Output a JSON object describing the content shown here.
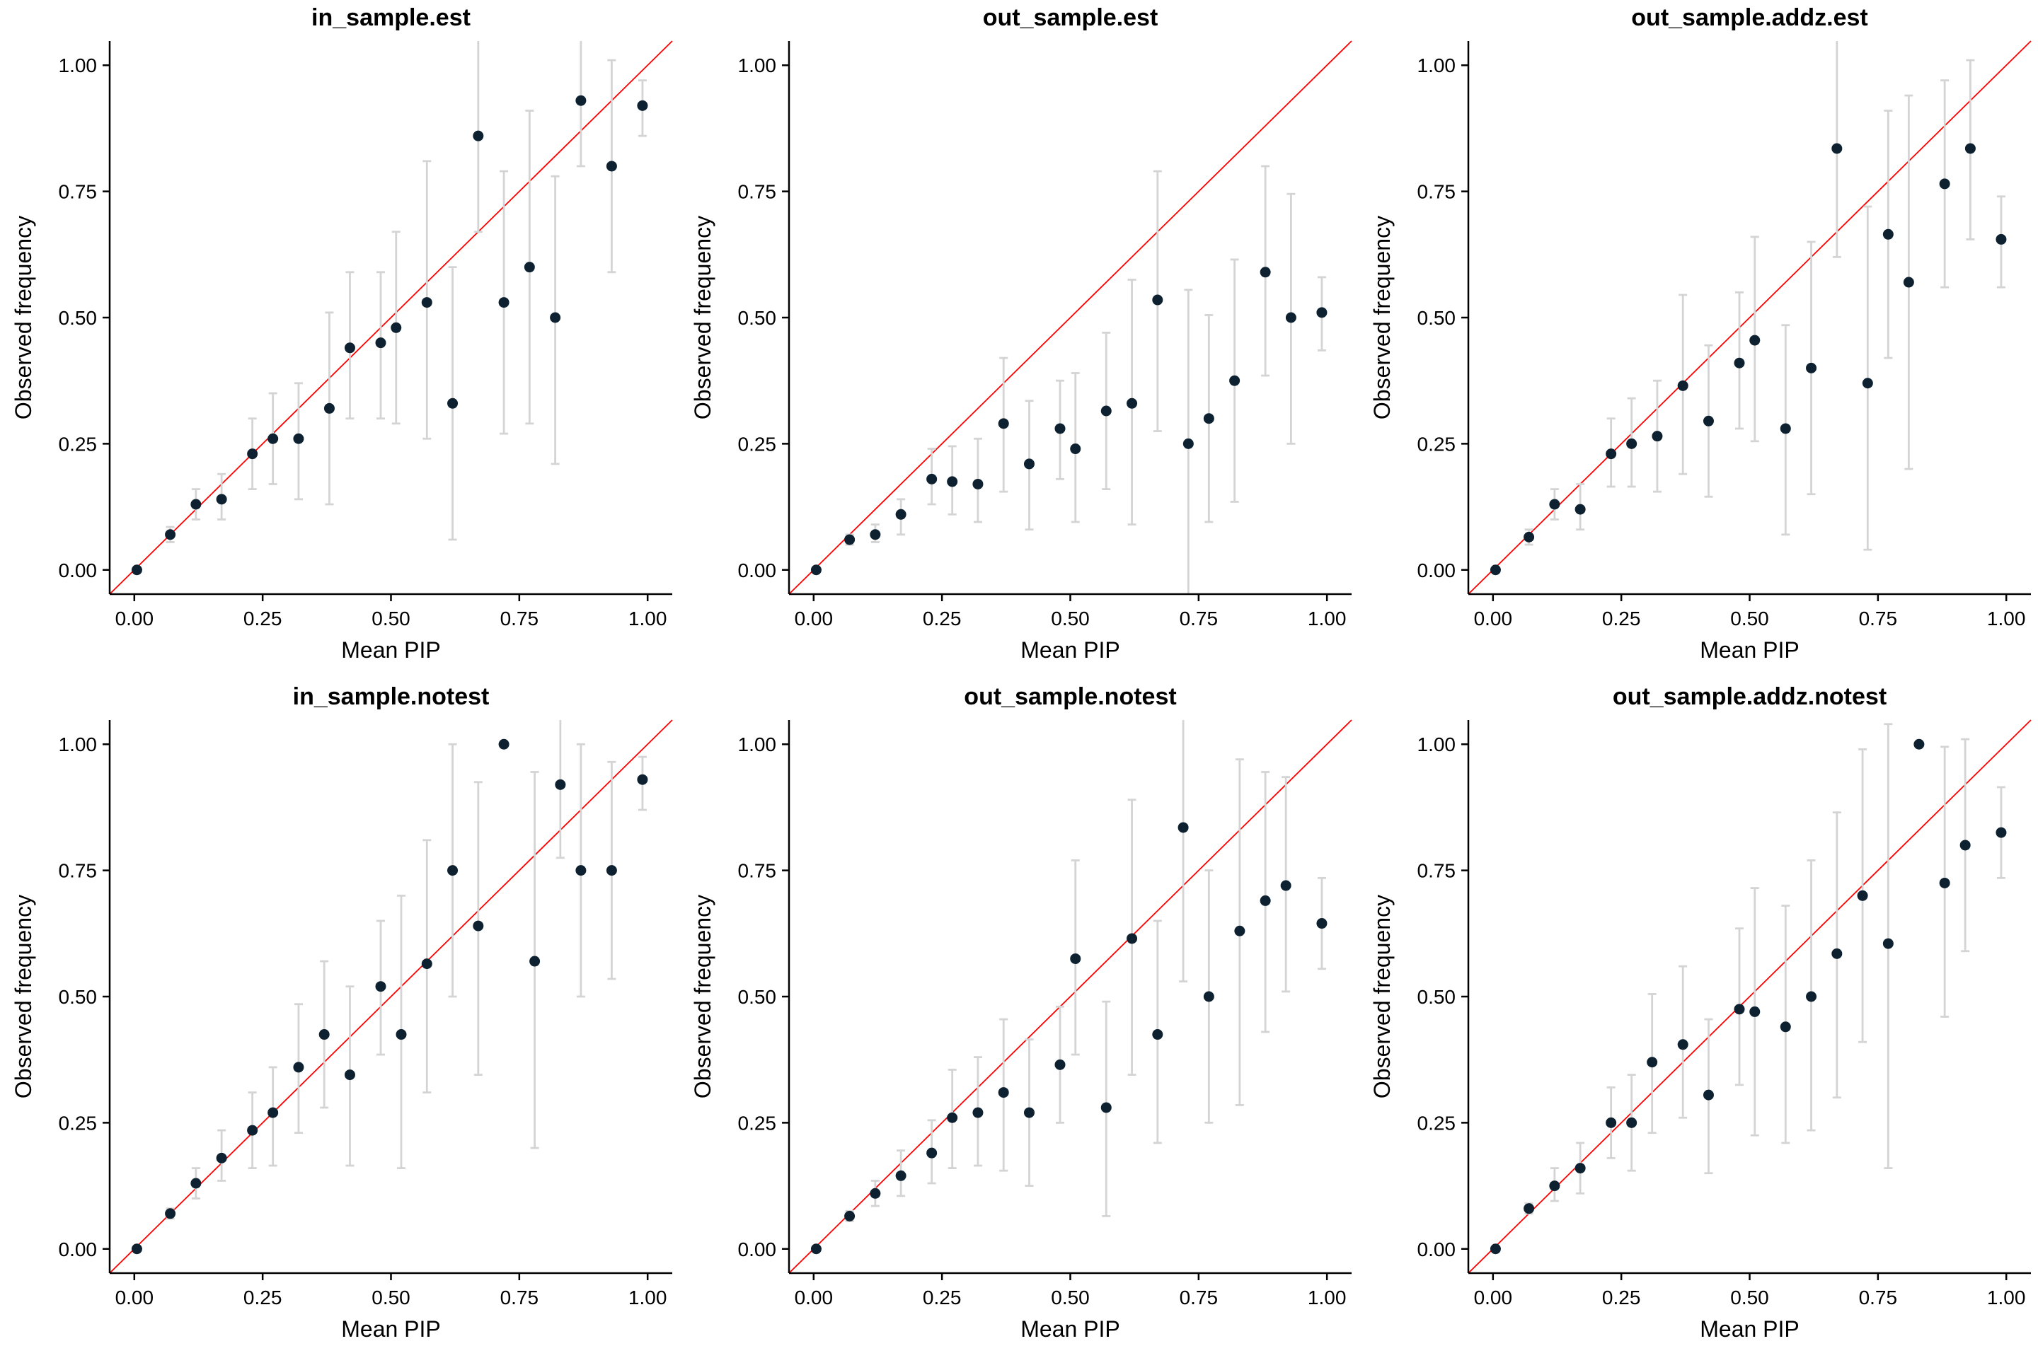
{
  "figure": {
    "background": "#ffffff",
    "xlabel": "Mean PIP",
    "ylabel": "Observed frequency"
  },
  "style": {
    "point_color": "#0e2130",
    "errorbar_color": "#d4d4d4",
    "identity_line_color": "#ff0000",
    "axis_color": "#000000",
    "text_color": "#000000"
  },
  "chart_data": [
    {
      "type": "scatter",
      "title": "in_sample.est",
      "xlabel": "Mean PIP",
      "ylabel": "Observed frequency",
      "xlim": [
        -0.048,
        1.048
      ],
      "ylim": [
        -0.048,
        1.048
      ],
      "grid": false,
      "legend": "none",
      "identity_line": true,
      "x_ticks": {
        "values": [
          0,
          0.25,
          0.5,
          0.75,
          1
        ],
        "labels": [
          "0.00",
          "0.25",
          "0.50",
          "0.75",
          "1.00"
        ]
      },
      "y_ticks": {
        "values": [
          0,
          0.25,
          0.5,
          0.75,
          1
        ],
        "labels": [
          "0.00",
          "0.25",
          "0.50",
          "0.75",
          "1.00"
        ]
      },
      "points": [
        {
          "x": 0.005,
          "y": 0.0,
          "lo": 0.0,
          "hi": 0.0
        },
        {
          "x": 0.07,
          "y": 0.07,
          "lo": 0.055,
          "hi": 0.085
        },
        {
          "x": 0.12,
          "y": 0.13,
          "lo": 0.1,
          "hi": 0.16
        },
        {
          "x": 0.17,
          "y": 0.14,
          "lo": 0.1,
          "hi": 0.19
        },
        {
          "x": 0.23,
          "y": 0.23,
          "lo": 0.16,
          "hi": 0.3
        },
        {
          "x": 0.27,
          "y": 0.26,
          "lo": 0.17,
          "hi": 0.35
        },
        {
          "x": 0.32,
          "y": 0.26,
          "lo": 0.14,
          "hi": 0.37
        },
        {
          "x": 0.38,
          "y": 0.32,
          "lo": 0.13,
          "hi": 0.51
        },
        {
          "x": 0.42,
          "y": 0.44,
          "lo": 0.3,
          "hi": 0.59
        },
        {
          "x": 0.48,
          "y": 0.45,
          "lo": 0.3,
          "hi": 0.59
        },
        {
          "x": 0.51,
          "y": 0.48,
          "lo": 0.29,
          "hi": 0.67
        },
        {
          "x": 0.57,
          "y": 0.53,
          "lo": 0.26,
          "hi": 0.81
        },
        {
          "x": 0.62,
          "y": 0.33,
          "lo": 0.06,
          "hi": 0.6
        },
        {
          "x": 0.67,
          "y": 0.86,
          "lo": 0.67,
          "hi": 1.05
        },
        {
          "x": 0.72,
          "y": 0.53,
          "lo": 0.27,
          "hi": 0.79
        },
        {
          "x": 0.77,
          "y": 0.6,
          "lo": 0.29,
          "hi": 0.91
        },
        {
          "x": 0.82,
          "y": 0.5,
          "lo": 0.21,
          "hi": 0.78
        },
        {
          "x": 0.87,
          "y": 0.93,
          "lo": 0.8,
          "hi": 1.05
        },
        {
          "x": 0.93,
          "y": 0.8,
          "lo": 0.59,
          "hi": 1.01
        },
        {
          "x": 0.99,
          "y": 0.92,
          "lo": 0.86,
          "hi": 0.97
        }
      ]
    },
    {
      "type": "scatter",
      "title": "out_sample.est",
      "xlabel": "Mean PIP",
      "ylabel": "Observed frequency",
      "xlim": [
        -0.048,
        1.048
      ],
      "ylim": [
        -0.048,
        1.048
      ],
      "grid": false,
      "legend": "none",
      "identity_line": true,
      "x_ticks": {
        "values": [
          0,
          0.25,
          0.5,
          0.75,
          1
        ],
        "labels": [
          "0.00",
          "0.25",
          "0.50",
          "0.75",
          "1.00"
        ]
      },
      "y_ticks": {
        "values": [
          0,
          0.25,
          0.5,
          0.75,
          1
        ],
        "labels": [
          "0.00",
          "0.25",
          "0.50",
          "0.75",
          "1.00"
        ]
      },
      "points": [
        {
          "x": 0.005,
          "y": 0.0,
          "lo": 0.0,
          "hi": 0.0
        },
        {
          "x": 0.07,
          "y": 0.06,
          "lo": 0.05,
          "hi": 0.07
        },
        {
          "x": 0.12,
          "y": 0.07,
          "lo": 0.055,
          "hi": 0.09
        },
        {
          "x": 0.17,
          "y": 0.11,
          "lo": 0.07,
          "hi": 0.14
        },
        {
          "x": 0.23,
          "y": 0.18,
          "lo": 0.13,
          "hi": 0.24
        },
        {
          "x": 0.27,
          "y": 0.175,
          "lo": 0.11,
          "hi": 0.245
        },
        {
          "x": 0.32,
          "y": 0.17,
          "lo": 0.095,
          "hi": 0.26
        },
        {
          "x": 0.37,
          "y": 0.29,
          "lo": 0.155,
          "hi": 0.42
        },
        {
          "x": 0.42,
          "y": 0.21,
          "lo": 0.08,
          "hi": 0.335
        },
        {
          "x": 0.48,
          "y": 0.28,
          "lo": 0.18,
          "hi": 0.375
        },
        {
          "x": 0.51,
          "y": 0.24,
          "lo": 0.095,
          "hi": 0.39
        },
        {
          "x": 0.57,
          "y": 0.315,
          "lo": 0.16,
          "hi": 0.47
        },
        {
          "x": 0.62,
          "y": 0.33,
          "lo": 0.09,
          "hi": 0.575
        },
        {
          "x": 0.67,
          "y": 0.535,
          "lo": 0.275,
          "hi": 0.79
        },
        {
          "x": 0.73,
          "y": 0.25,
          "lo": -0.05,
          "hi": 0.555
        },
        {
          "x": 0.77,
          "y": 0.3,
          "lo": 0.095,
          "hi": 0.505
        },
        {
          "x": 0.82,
          "y": 0.375,
          "lo": 0.135,
          "hi": 0.615
        },
        {
          "x": 0.88,
          "y": 0.59,
          "lo": 0.385,
          "hi": 0.8
        },
        {
          "x": 0.93,
          "y": 0.5,
          "lo": 0.25,
          "hi": 0.745
        },
        {
          "x": 0.99,
          "y": 0.51,
          "lo": 0.435,
          "hi": 0.58
        }
      ]
    },
    {
      "type": "scatter",
      "title": "out_sample.addz.est",
      "xlabel": "Mean PIP",
      "ylabel": "Observed frequency",
      "xlim": [
        -0.048,
        1.048
      ],
      "ylim": [
        -0.048,
        1.048
      ],
      "grid": false,
      "legend": "none",
      "identity_line": true,
      "x_ticks": {
        "values": [
          0,
          0.25,
          0.5,
          0.75,
          1
        ],
        "labels": [
          "0.00",
          "0.25",
          "0.50",
          "0.75",
          "1.00"
        ]
      },
      "y_ticks": {
        "values": [
          0,
          0.25,
          0.5,
          0.75,
          1
        ],
        "labels": [
          "0.00",
          "0.25",
          "0.50",
          "0.75",
          "1.00"
        ]
      },
      "points": [
        {
          "x": 0.005,
          "y": 0.0,
          "lo": 0.0,
          "hi": 0.0
        },
        {
          "x": 0.07,
          "y": 0.065,
          "lo": 0.05,
          "hi": 0.08
        },
        {
          "x": 0.12,
          "y": 0.13,
          "lo": 0.1,
          "hi": 0.16
        },
        {
          "x": 0.17,
          "y": 0.12,
          "lo": 0.08,
          "hi": 0.17
        },
        {
          "x": 0.23,
          "y": 0.23,
          "lo": 0.165,
          "hi": 0.3
        },
        {
          "x": 0.27,
          "y": 0.25,
          "lo": 0.165,
          "hi": 0.34
        },
        {
          "x": 0.32,
          "y": 0.265,
          "lo": 0.155,
          "hi": 0.375
        },
        {
          "x": 0.37,
          "y": 0.365,
          "lo": 0.19,
          "hi": 0.545
        },
        {
          "x": 0.42,
          "y": 0.295,
          "lo": 0.145,
          "hi": 0.445
        },
        {
          "x": 0.48,
          "y": 0.41,
          "lo": 0.28,
          "hi": 0.55
        },
        {
          "x": 0.51,
          "y": 0.455,
          "lo": 0.255,
          "hi": 0.66
        },
        {
          "x": 0.57,
          "y": 0.28,
          "lo": 0.07,
          "hi": 0.485
        },
        {
          "x": 0.62,
          "y": 0.4,
          "lo": 0.15,
          "hi": 0.65
        },
        {
          "x": 0.67,
          "y": 0.835,
          "lo": 0.62,
          "hi": 1.05
        },
        {
          "x": 0.73,
          "y": 0.37,
          "lo": 0.04,
          "hi": 0.72
        },
        {
          "x": 0.77,
          "y": 0.665,
          "lo": 0.42,
          "hi": 0.91
        },
        {
          "x": 0.81,
          "y": 0.57,
          "lo": 0.2,
          "hi": 0.94
        },
        {
          "x": 0.88,
          "y": 0.765,
          "lo": 0.56,
          "hi": 0.97
        },
        {
          "x": 0.93,
          "y": 0.835,
          "lo": 0.655,
          "hi": 1.01
        },
        {
          "x": 0.99,
          "y": 0.655,
          "lo": 0.56,
          "hi": 0.74
        }
      ]
    },
    {
      "type": "scatter",
      "title": "in_sample.notest",
      "xlabel": "Mean PIP",
      "ylabel": "Observed frequency",
      "xlim": [
        -0.048,
        1.048
      ],
      "ylim": [
        -0.048,
        1.048
      ],
      "grid": false,
      "legend": "none",
      "identity_line": true,
      "x_ticks": {
        "values": [
          0,
          0.25,
          0.5,
          0.75,
          1
        ],
        "labels": [
          "0.00",
          "0.25",
          "0.50",
          "0.75",
          "1.00"
        ]
      },
      "y_ticks": {
        "values": [
          0,
          0.25,
          0.5,
          0.75,
          1
        ],
        "labels": [
          "0.00",
          "0.25",
          "0.50",
          "0.75",
          "1.00"
        ]
      },
      "points": [
        {
          "x": 0.005,
          "y": 0.0,
          "lo": 0.0,
          "hi": 0.0
        },
        {
          "x": 0.07,
          "y": 0.07,
          "lo": 0.06,
          "hi": 0.08
        },
        {
          "x": 0.12,
          "y": 0.13,
          "lo": 0.1,
          "hi": 0.16
        },
        {
          "x": 0.17,
          "y": 0.18,
          "lo": 0.135,
          "hi": 0.235
        },
        {
          "x": 0.23,
          "y": 0.235,
          "lo": 0.16,
          "hi": 0.31
        },
        {
          "x": 0.27,
          "y": 0.27,
          "lo": 0.165,
          "hi": 0.36
        },
        {
          "x": 0.32,
          "y": 0.36,
          "lo": 0.23,
          "hi": 0.485
        },
        {
          "x": 0.37,
          "y": 0.425,
          "lo": 0.28,
          "hi": 0.57
        },
        {
          "x": 0.42,
          "y": 0.345,
          "lo": 0.165,
          "hi": 0.52
        },
        {
          "x": 0.48,
          "y": 0.52,
          "lo": 0.385,
          "hi": 0.65
        },
        {
          "x": 0.52,
          "y": 0.425,
          "lo": 0.16,
          "hi": 0.7
        },
        {
          "x": 0.57,
          "y": 0.565,
          "lo": 0.31,
          "hi": 0.81
        },
        {
          "x": 0.62,
          "y": 0.75,
          "lo": 0.5,
          "hi": 1.0
        },
        {
          "x": 0.67,
          "y": 0.64,
          "lo": 0.345,
          "hi": 0.925
        },
        {
          "x": 0.72,
          "y": 1.0,
          "lo": 1.0,
          "hi": 1.0
        },
        {
          "x": 0.78,
          "y": 0.57,
          "lo": 0.2,
          "hi": 0.945
        },
        {
          "x": 0.83,
          "y": 0.92,
          "lo": 0.775,
          "hi": 1.05
        },
        {
          "x": 0.87,
          "y": 0.75,
          "lo": 0.5,
          "hi": 1.0
        },
        {
          "x": 0.93,
          "y": 0.75,
          "lo": 0.535,
          "hi": 0.965
        },
        {
          "x": 0.99,
          "y": 0.93,
          "lo": 0.87,
          "hi": 0.975
        }
      ]
    },
    {
      "type": "scatter",
      "title": "out_sample.notest",
      "xlabel": "Mean PIP",
      "ylabel": "Observed frequency",
      "xlim": [
        -0.048,
        1.048
      ],
      "ylim": [
        -0.048,
        1.048
      ],
      "grid": false,
      "legend": "none",
      "identity_line": true,
      "x_ticks": {
        "values": [
          0,
          0.25,
          0.5,
          0.75,
          1
        ],
        "labels": [
          "0.00",
          "0.25",
          "0.50",
          "0.75",
          "1.00"
        ]
      },
      "y_ticks": {
        "values": [
          0,
          0.25,
          0.5,
          0.75,
          1
        ],
        "labels": [
          "0.00",
          "0.25",
          "0.50",
          "0.75",
          "1.00"
        ]
      },
      "points": [
        {
          "x": 0.005,
          "y": 0.0,
          "lo": 0.0,
          "hi": 0.0
        },
        {
          "x": 0.07,
          "y": 0.065,
          "lo": 0.055,
          "hi": 0.075
        },
        {
          "x": 0.12,
          "y": 0.11,
          "lo": 0.085,
          "hi": 0.135
        },
        {
          "x": 0.17,
          "y": 0.145,
          "lo": 0.105,
          "hi": 0.195
        },
        {
          "x": 0.23,
          "y": 0.19,
          "lo": 0.13,
          "hi": 0.255
        },
        {
          "x": 0.27,
          "y": 0.26,
          "lo": 0.16,
          "hi": 0.355
        },
        {
          "x": 0.32,
          "y": 0.27,
          "lo": 0.165,
          "hi": 0.38
        },
        {
          "x": 0.37,
          "y": 0.31,
          "lo": 0.155,
          "hi": 0.455
        },
        {
          "x": 0.42,
          "y": 0.27,
          "lo": 0.125,
          "hi": 0.415
        },
        {
          "x": 0.48,
          "y": 0.365,
          "lo": 0.25,
          "hi": 0.48
        },
        {
          "x": 0.51,
          "y": 0.575,
          "lo": 0.385,
          "hi": 0.77
        },
        {
          "x": 0.57,
          "y": 0.28,
          "lo": 0.065,
          "hi": 0.49
        },
        {
          "x": 0.62,
          "y": 0.615,
          "lo": 0.345,
          "hi": 0.89
        },
        {
          "x": 0.67,
          "y": 0.425,
          "lo": 0.21,
          "hi": 0.65
        },
        {
          "x": 0.72,
          "y": 0.835,
          "lo": 0.53,
          "hi": 1.05
        },
        {
          "x": 0.77,
          "y": 0.5,
          "lo": 0.25,
          "hi": 0.75
        },
        {
          "x": 0.83,
          "y": 0.63,
          "lo": 0.285,
          "hi": 0.97
        },
        {
          "x": 0.88,
          "y": 0.69,
          "lo": 0.43,
          "hi": 0.945
        },
        {
          "x": 0.92,
          "y": 0.72,
          "lo": 0.51,
          "hi": 0.935
        },
        {
          "x": 0.99,
          "y": 0.645,
          "lo": 0.555,
          "hi": 0.735
        }
      ]
    },
    {
      "type": "scatter",
      "title": "out_sample.addz.notest",
      "xlabel": "Mean PIP",
      "ylabel": "Observed frequency",
      "xlim": [
        -0.048,
        1.048
      ],
      "ylim": [
        -0.048,
        1.048
      ],
      "grid": false,
      "legend": "none",
      "identity_line": true,
      "x_ticks": {
        "values": [
          0,
          0.25,
          0.5,
          0.75,
          1
        ],
        "labels": [
          "0.00",
          "0.25",
          "0.50",
          "0.75",
          "1.00"
        ]
      },
      "y_ticks": {
        "values": [
          0,
          0.25,
          0.5,
          0.75,
          1
        ],
        "labels": [
          "0.00",
          "0.25",
          "0.50",
          "0.75",
          "1.00"
        ]
      },
      "points": [
        {
          "x": 0.005,
          "y": 0.0,
          "lo": 0.0,
          "hi": 0.0
        },
        {
          "x": 0.07,
          "y": 0.08,
          "lo": 0.07,
          "hi": 0.09
        },
        {
          "x": 0.12,
          "y": 0.125,
          "lo": 0.095,
          "hi": 0.16
        },
        {
          "x": 0.17,
          "y": 0.16,
          "lo": 0.11,
          "hi": 0.21
        },
        {
          "x": 0.23,
          "y": 0.25,
          "lo": 0.18,
          "hi": 0.32
        },
        {
          "x": 0.27,
          "y": 0.25,
          "lo": 0.155,
          "hi": 0.345
        },
        {
          "x": 0.31,
          "y": 0.37,
          "lo": 0.23,
          "hi": 0.505
        },
        {
          "x": 0.37,
          "y": 0.405,
          "lo": 0.26,
          "hi": 0.56
        },
        {
          "x": 0.42,
          "y": 0.305,
          "lo": 0.15,
          "hi": 0.455
        },
        {
          "x": 0.48,
          "y": 0.475,
          "lo": 0.325,
          "hi": 0.635
        },
        {
          "x": 0.51,
          "y": 0.47,
          "lo": 0.225,
          "hi": 0.715
        },
        {
          "x": 0.57,
          "y": 0.44,
          "lo": 0.21,
          "hi": 0.68
        },
        {
          "x": 0.62,
          "y": 0.5,
          "lo": 0.235,
          "hi": 0.77
        },
        {
          "x": 0.67,
          "y": 0.585,
          "lo": 0.3,
          "hi": 0.865
        },
        {
          "x": 0.72,
          "y": 0.7,
          "lo": 0.41,
          "hi": 0.99
        },
        {
          "x": 0.77,
          "y": 0.605,
          "lo": 0.16,
          "hi": 1.04
        },
        {
          "x": 0.83,
          "y": 1.0,
          "lo": 1.0,
          "hi": 1.0
        },
        {
          "x": 0.88,
          "y": 0.725,
          "lo": 0.46,
          "hi": 0.995
        },
        {
          "x": 0.92,
          "y": 0.8,
          "lo": 0.59,
          "hi": 1.01
        },
        {
          "x": 0.99,
          "y": 0.825,
          "lo": 0.735,
          "hi": 0.915
        }
      ]
    }
  ]
}
